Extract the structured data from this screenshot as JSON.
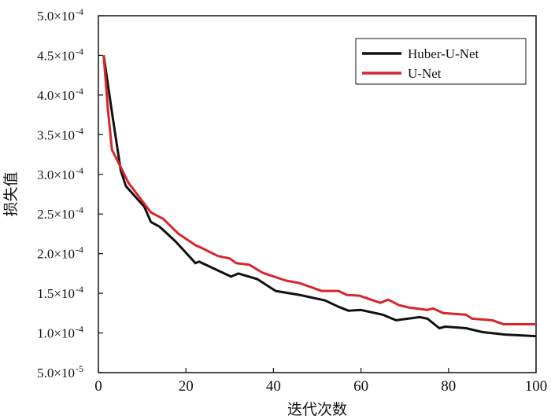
{
  "chart_data": {
    "type": "line",
    "title": "",
    "xlabel": "迭代次数",
    "ylabel": "损失值",
    "xlim": [
      0,
      100
    ],
    "ylim": [
      5e-05,
      0.0005
    ],
    "grid": false,
    "legend_position": "top-right",
    "x_ticks": [
      "0",
      "20",
      "40",
      "60",
      "80",
      "100"
    ],
    "x_tick_values": [
      0,
      20,
      40,
      60,
      80,
      100
    ],
    "y_ticks": [
      {
        "value": 0.0005,
        "mantissa": "5.0×10",
        "exp": "-4"
      },
      {
        "value": 0.00045,
        "mantissa": "4.5×10",
        "exp": "-4"
      },
      {
        "value": 0.0004,
        "mantissa": "4.0×10",
        "exp": "-4"
      },
      {
        "value": 0.00035,
        "mantissa": "3.5×10",
        "exp": "-4"
      },
      {
        "value": 0.0003,
        "mantissa": "3.0×10",
        "exp": "-4"
      },
      {
        "value": 0.00025,
        "mantissa": "2.5×10",
        "exp": "-4"
      },
      {
        "value": 0.0002,
        "mantissa": "2.0×10",
        "exp": "-4"
      },
      {
        "value": 0.00015,
        "mantissa": "1.5×10",
        "exp": "-4"
      },
      {
        "value": 0.0001,
        "mantissa": "1.0×10",
        "exp": "-4"
      },
      {
        "value": 5e-05,
        "mantissa": "5.0×10",
        "exp": "-5"
      }
    ],
    "series": [
      {
        "name": "Huber-U-Net",
        "color": "#111111",
        "x": [
          1.2,
          3.3,
          5.1,
          6.3,
          10.5,
          12,
          14,
          17.7,
          22.2,
          23,
          30.3,
          32,
          36.3,
          40.5,
          45.9,
          47.6,
          51.8,
          54.9,
          57.2,
          60,
          65,
          68,
          73.4,
          75.2,
          77.9,
          79.3,
          84,
          87.8,
          93,
          100
        ],
        "y": [
          0.00045,
          0.000371,
          0.000305,
          0.000285,
          0.000259,
          0.00024,
          0.000234,
          0.000215,
          0.000188,
          0.00019,
          0.000171,
          0.000175,
          0.000168,
          0.000153,
          0.000148,
          0.000146,
          0.000141,
          0.000133,
          0.000128,
          0.000129,
          0.000123,
          0.000116,
          0.00012,
          0.000118,
          0.000106,
          0.000108,
          0.000106,
          0.000101,
          9.8e-05,
          9.6e-05
        ]
      },
      {
        "name": "U-Net",
        "color": "#d8252b",
        "x": [
          1.2,
          2.2,
          3.1,
          5.1,
          6.9,
          12,
          14.8,
          18.3,
          22.4,
          23.3,
          27.3,
          30,
          31.5,
          34.5,
          37.5,
          42.9,
          45.9,
          51,
          54.9,
          56.7,
          59.6,
          64.4,
          66.2,
          68.7,
          71,
          75.2,
          76.4,
          78.8,
          84,
          85.4,
          90,
          92.6,
          100
        ],
        "y": [
          0.00045,
          0.000381,
          0.000331,
          0.000309,
          0.000289,
          0.000252,
          0.000244,
          0.000225,
          0.00021,
          0.000208,
          0.000197,
          0.000194,
          0.000188,
          0.000186,
          0.000176,
          0.000166,
          0.000163,
          0.000153,
          0.000153,
          0.000148,
          0.000147,
          0.000138,
          0.000142,
          0.000135,
          0.000132,
          0.000129,
          0.000131,
          0.000125,
          0.000123,
          0.000118,
          0.000116,
          0.000111,
          0.000111
        ]
      }
    ]
  }
}
